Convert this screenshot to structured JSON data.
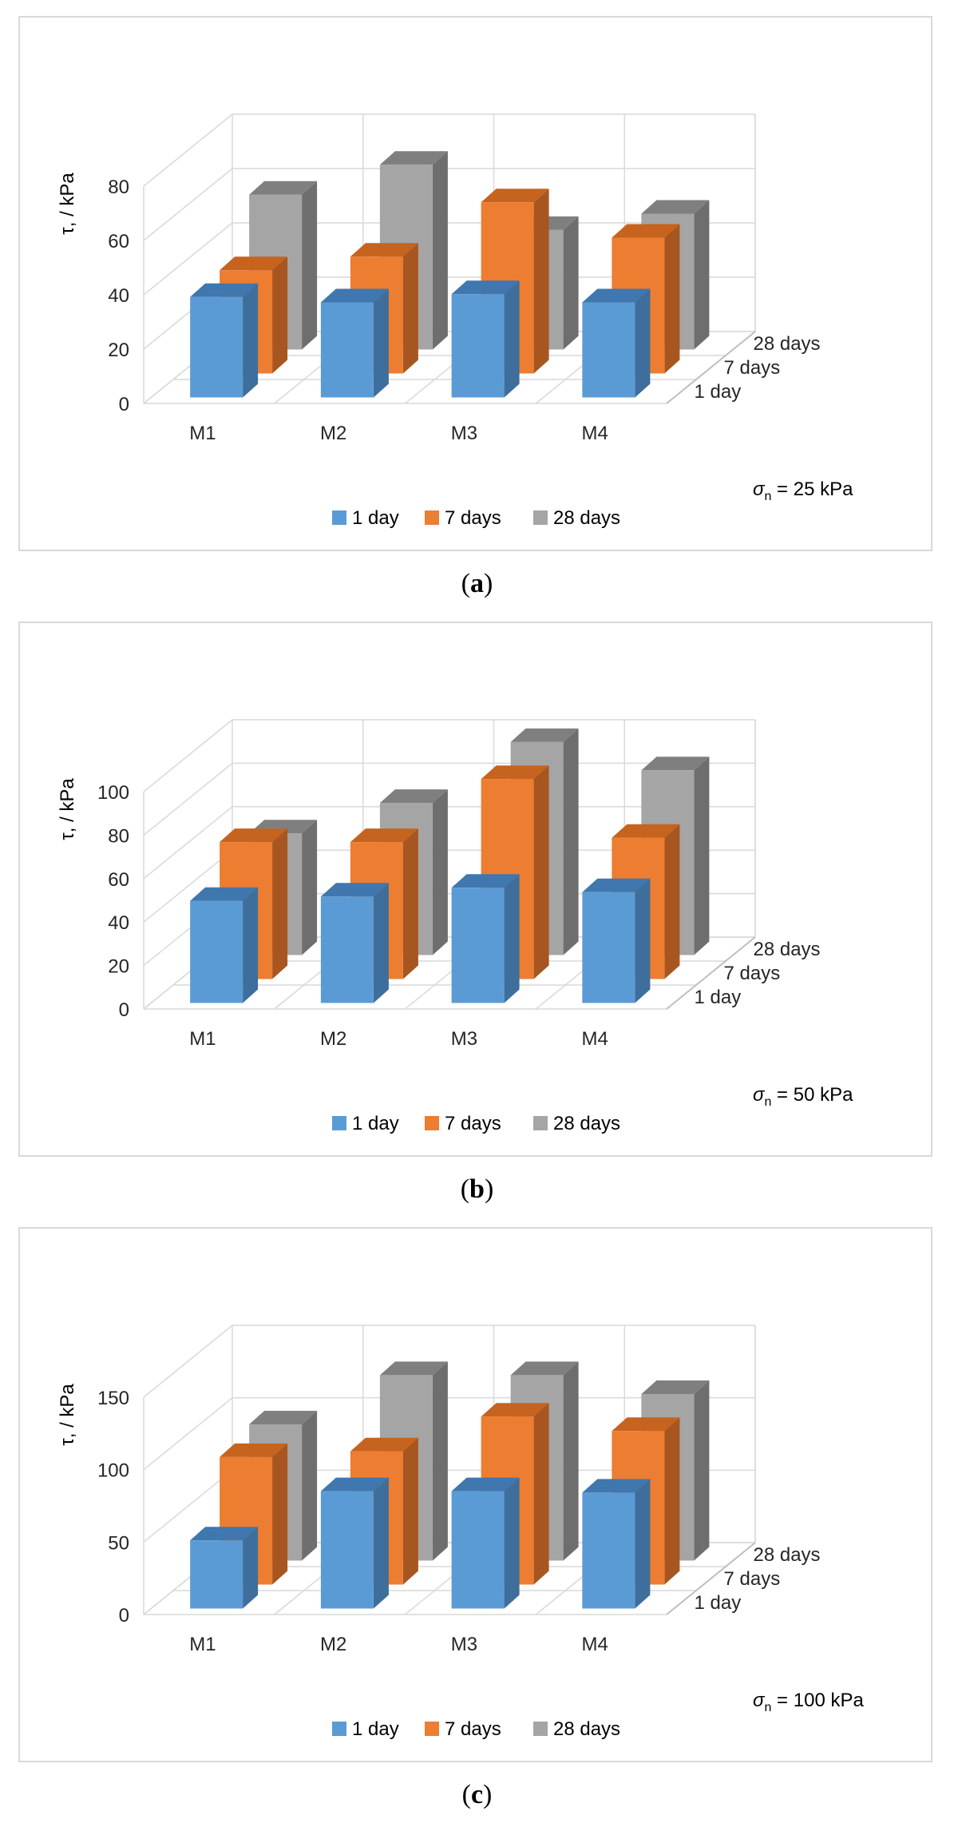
{
  "chart_data": [
    {
      "type": "bar",
      "subtype": "3d-column",
      "categories": [
        "M1",
        "M2",
        "M3",
        "M4"
      ],
      "series": [
        {
          "name": "1 day",
          "values": [
            37,
            35,
            38,
            35
          ]
        },
        {
          "name": "7 days",
          "values": [
            38,
            43,
            63,
            50
          ]
        },
        {
          "name": "28 days",
          "values": [
            57,
            68,
            44,
            50
          ]
        }
      ],
      "depth_labels": [
        "1 day",
        "7 days",
        "28 days"
      ],
      "ylabel": "τ, / kPa",
      "yticks": [
        "0",
        "20",
        "40",
        "60",
        "80"
      ],
      "ylim": [
        0,
        80
      ],
      "annotation_symbol": "σ",
      "annotation_sub": "n",
      "annotation_value": " = 25 kPa",
      "legend": [
        "1 day",
        "7 days",
        "28 days"
      ],
      "caption": {
        "open": "(",
        "letter": "a",
        "close": ")"
      }
    },
    {
      "type": "bar",
      "subtype": "3d-column",
      "categories": [
        "M1",
        "M2",
        "M3",
        "M4"
      ],
      "series": [
        {
          "name": "1 day",
          "values": [
            47,
            49,
            53,
            51
          ]
        },
        {
          "name": "7 days",
          "values": [
            63,
            63,
            92,
            65
          ]
        },
        {
          "name": "28 days",
          "values": [
            56,
            70,
            98,
            85
          ]
        }
      ],
      "depth_labels": [
        "1 day",
        "7 days",
        "28 days"
      ],
      "ylabel": "τ, / kPa",
      "yticks": [
        "0",
        "20",
        "40",
        "60",
        "80",
        "100"
      ],
      "ylim": [
        0,
        100
      ],
      "annotation_symbol": "σ",
      "annotation_sub": "n",
      "annotation_value": " = 50 kPa",
      "legend": [
        "1 day",
        "7 days",
        "28 days"
      ],
      "caption": {
        "open": "(",
        "letter": "b",
        "close": ")"
      }
    },
    {
      "type": "bar",
      "subtype": "3d-column",
      "categories": [
        "M1",
        "M2",
        "M3",
        "M4"
      ],
      "series": [
        {
          "name": "1 day",
          "values": [
            47,
            81,
            81,
            80
          ]
        },
        {
          "name": "7 days",
          "values": [
            88,
            92,
            116,
            106
          ]
        },
        {
          "name": "28 days",
          "values": [
            94,
            128,
            128,
            115
          ]
        }
      ],
      "depth_labels": [
        "1 day",
        "7 days",
        "28 days"
      ],
      "ylabel": "τ, / kPa",
      "yticks": [
        "0",
        "50",
        "100",
        "150"
      ],
      "ylim": [
        0,
        150
      ],
      "annotation_symbol": "σ",
      "annotation_sub": "n",
      "annotation_value": " = 100 kPa",
      "legend": [
        "1 day",
        "7 days",
        "28 days"
      ],
      "caption": {
        "open": "(",
        "letter": "c",
        "close": ")"
      }
    }
  ],
  "colors": {
    "one_day": {
      "front": "#5b9bd5",
      "side": "#3d6e9c",
      "top": "#3f77ae"
    },
    "seven_days": {
      "front": "#ed7d31",
      "side": "#a8561f",
      "top": "#c6631e"
    },
    "twenty_eight_days": {
      "front": "#a5a5a5",
      "side": "#6e6e6e",
      "top": "#7f7f7f"
    },
    "grid": "#d9d9d9",
    "text": "#404040"
  }
}
